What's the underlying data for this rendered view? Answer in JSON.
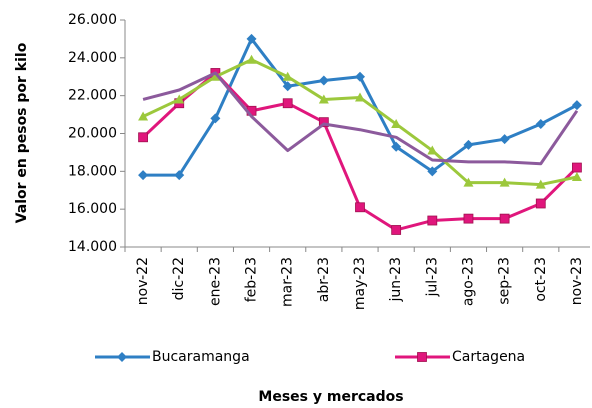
{
  "chart_data": {
    "type": "line",
    "y_label": "Valor en pesos por kilo",
    "x_label": "Meses  y mercados",
    "categories": [
      "nov-22",
      "dic-22",
      "ene-23",
      "feb-23",
      "mar-23",
      "abr-23",
      "may-23",
      "jun-23",
      "jul-23",
      "ago-23",
      "sep-23",
      "oct-23",
      "nov-23"
    ],
    "series": [
      {
        "name": "Bucaramanga",
        "color": "#2e7fc4",
        "marker": "diamond",
        "values": [
          17800,
          17800,
          20800,
          25000,
          22500,
          22800,
          23000,
          19300,
          18000,
          19400,
          19700,
          20500,
          21500
        ]
      },
      {
        "name": "Cartagena",
        "color": "#e0167c",
        "marker": "square",
        "values": [
          19800,
          21600,
          23200,
          21200,
          21600,
          20600,
          16100,
          14900,
          15400,
          15500,
          15500,
          16300,
          18200
        ]
      },
      {
        "color": "#9cc83c",
        "marker": "triangle",
        "values": [
          20900,
          21800,
          23000,
          23900,
          23000,
          21800,
          21900,
          20500,
          19100,
          17400,
          17400,
          17300,
          17700
        ]
      },
      {
        "color": "#8c5a9c",
        "marker": "none",
        "values": [
          21800,
          22300,
          23200,
          20900,
          19100,
          20500,
          20200,
          19800,
          18600,
          18500,
          18500,
          18400,
          21200
        ]
      }
    ],
    "ylim": [
      14000,
      26000
    ],
    "yticks": [
      {
        "value": 14000,
        "label": "14.000"
      },
      {
        "value": 16000,
        "label": "16.000"
      },
      {
        "value": 18000,
        "label": "18.000"
      },
      {
        "value": 20000,
        "label": "20.000"
      },
      {
        "value": 22000,
        "label": "22.000"
      },
      {
        "value": 24000,
        "label": "24.000"
      },
      {
        "value": 26000,
        "label": "26.000"
      }
    ]
  }
}
